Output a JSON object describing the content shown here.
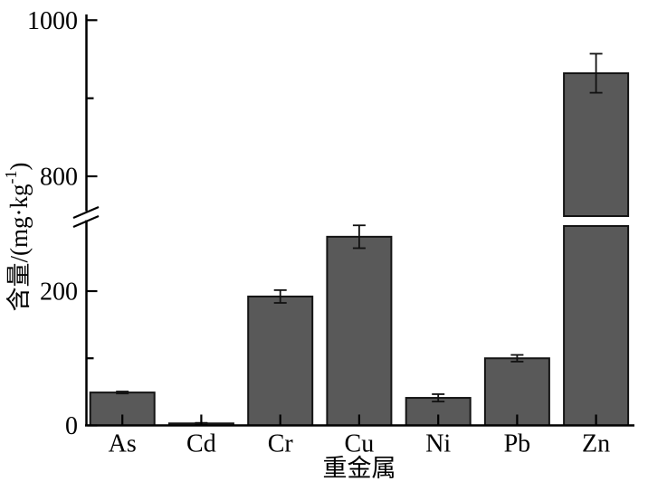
{
  "figure": {
    "background": "#ffffff"
  },
  "chart_data": {
    "type": "bar",
    "title": "",
    "xlabel": "重金属",
    "ylabel": "含量/(mg·kg⁻¹)",
    "ylabel_parts": {
      "pre": "含量/(mg·kg",
      "sup": "-1",
      "post": ")"
    },
    "categories": [
      "As",
      "Cd",
      "Cr",
      "Cu",
      "Ni",
      "Pb",
      "Zn"
    ],
    "values": [
      49,
      3,
      192,
      281,
      41,
      100,
      932
    ],
    "errors": [
      1.5,
      0.8,
      9.5,
      17,
      5.5,
      5,
      25
    ],
    "bar_color": "#595959",
    "bar_edge_color": "#141414",
    "axis_color": "#000000",
    "grid": false,
    "axis_break": {
      "lower_segment_min": 0,
      "lower_segment_max": 300,
      "upper_segment_min": 800,
      "upper_segment_max": 1000
    },
    "y_ticks": {
      "lower_major": [
        0,
        200
      ],
      "lower_minor": [
        100
      ],
      "upper_major": [
        800,
        1000
      ],
      "upper_minor": [
        900
      ]
    }
  }
}
